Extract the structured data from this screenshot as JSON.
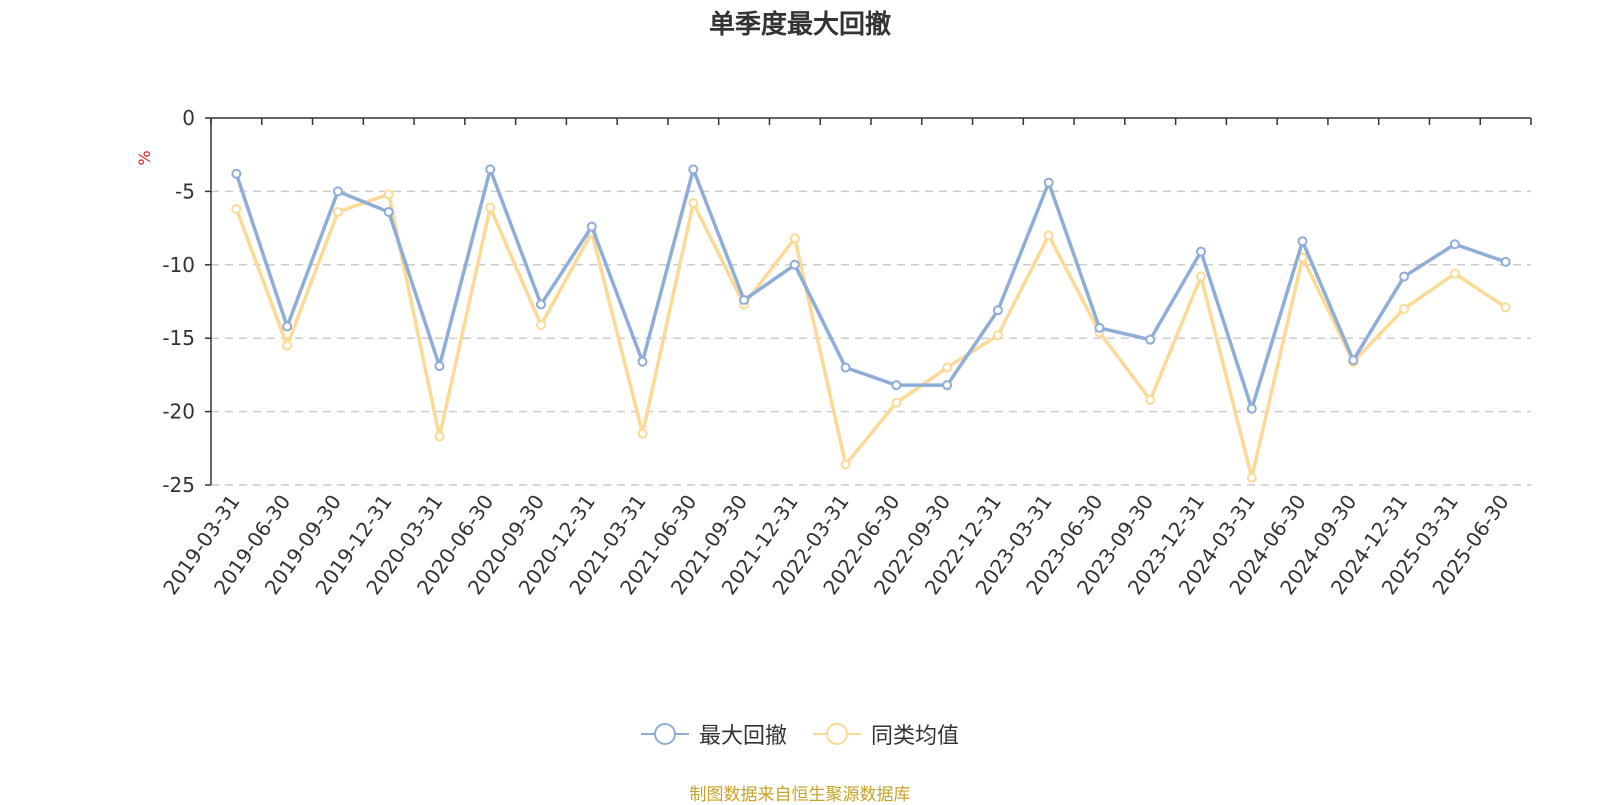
{
  "chart_data": {
    "type": "line",
    "title": "单季度最大回撤",
    "ylabel": "%",
    "xlabel": "",
    "ylim": [
      -25,
      0
    ],
    "yticks": [
      0,
      -5,
      -10,
      -15,
      -20,
      -25
    ],
    "grid": true,
    "legend_position": "bottom-center",
    "categories": [
      "2019-03-31",
      "2019-06-30",
      "2019-09-30",
      "2019-12-31",
      "2020-03-31",
      "2020-06-30",
      "2020-09-30",
      "2020-12-31",
      "2021-03-31",
      "2021-06-30",
      "2021-09-30",
      "2021-12-31",
      "2022-03-31",
      "2022-06-30",
      "2022-09-30",
      "2022-12-31",
      "2023-03-31",
      "2023-06-30",
      "2023-09-30",
      "2023-12-31",
      "2024-03-31",
      "2024-06-30",
      "2024-09-30",
      "2024-12-31",
      "2025-03-31",
      "2025-06-30"
    ],
    "series": [
      {
        "name": "最大回撤",
        "color": "#8eadd8",
        "values": [
          -3.8,
          -14.2,
          -5.0,
          -6.4,
          -16.9,
          -3.5,
          -12.7,
          -7.4,
          -16.6,
          -3.5,
          -12.4,
          -10.0,
          -17.0,
          -18.2,
          -18.2,
          -13.1,
          -4.4,
          -14.3,
          -15.1,
          -9.1,
          -19.8,
          -8.4,
          -16.5,
          -10.8,
          -8.6,
          -9.8
        ]
      },
      {
        "name": "同类均值",
        "color": "#fcd995",
        "values": [
          -6.2,
          -15.5,
          -6.4,
          -5.2,
          -21.7,
          -6.1,
          -14.1,
          -7.8,
          -21.5,
          -5.8,
          -12.7,
          -8.2,
          -23.6,
          -19.4,
          -17.0,
          -14.8,
          -8.0,
          -14.6,
          -19.2,
          -10.8,
          -24.5,
          -9.5,
          -16.6,
          -13.0,
          -10.6,
          -12.9
        ]
      }
    ]
  },
  "footer": {
    "source": "制图数据来自恒生聚源数据库"
  }
}
